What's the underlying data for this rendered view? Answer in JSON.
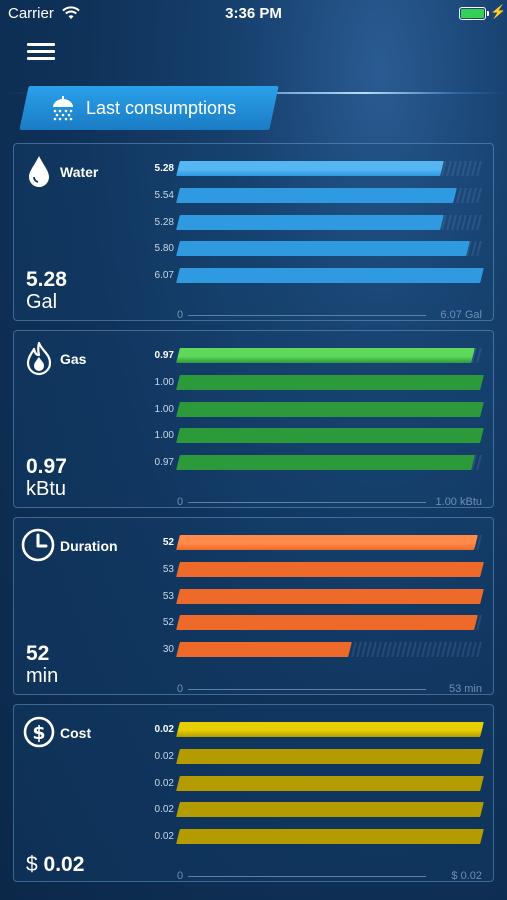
{
  "status_bar": {
    "carrier": "Carrier",
    "time": "3:36 PM",
    "battery_level": 1.0
  },
  "header": {
    "menu_icon": "hamburger-icon",
    "section_label": "Last consumptions",
    "section_icon": "shower-icon"
  },
  "colors": {
    "water": "#2f9ae0",
    "water_top": "#56b6f4",
    "gas": "#2c9a3a",
    "gas_top": "#5fd95c",
    "duration": "#ee6a2a",
    "duration_top": "#ff8a4a",
    "cost": "#b39b00",
    "cost_top": "#e6d000"
  },
  "cards": [
    {
      "id": "water",
      "icon": "water-drop-icon",
      "title": "Water",
      "value": "5.28",
      "unit": "Gal",
      "axis_min": "0",
      "axis_max": "6.07 Gal",
      "chart_data": {
        "type": "bar",
        "orientation": "horizontal",
        "values": [
          5.28,
          5.54,
          5.28,
          5.8,
          6.07
        ],
        "labels": [
          "5.28",
          "5.54",
          "5.28",
          "5.80",
          "6.07"
        ],
        "xlim": [
          0,
          6.07
        ],
        "highlight_index": 0
      }
    },
    {
      "id": "gas",
      "icon": "flame-icon",
      "title": "Gas",
      "value": "0.97",
      "unit": "kBtu",
      "axis_min": "0",
      "axis_max": "1.00 kBtu",
      "chart_data": {
        "type": "bar",
        "orientation": "horizontal",
        "values": [
          0.97,
          1.0,
          1.0,
          1.0,
          0.97
        ],
        "labels": [
          "0.97",
          "1.00",
          "1.00",
          "1.00",
          "0.97"
        ],
        "xlim": [
          0,
          1.0
        ],
        "highlight_index": 0
      }
    },
    {
      "id": "duration",
      "icon": "clock-icon",
      "title": "Duration",
      "value": "52",
      "unit": "min",
      "axis_min": "0",
      "axis_max": "53 min",
      "chart_data": {
        "type": "bar",
        "orientation": "horizontal",
        "values": [
          52,
          53,
          53,
          52,
          30
        ],
        "labels": [
          "52",
          "53",
          "53",
          "52",
          "30"
        ],
        "xlim": [
          0,
          53
        ],
        "highlight_index": 0
      }
    },
    {
      "id": "cost",
      "icon": "dollar-icon",
      "title": "Cost",
      "value_prefix": "$",
      "value": "0.02",
      "unit": "",
      "axis_min": "0",
      "axis_max": "$ 0.02",
      "chart_data": {
        "type": "bar",
        "orientation": "horizontal",
        "values": [
          0.02,
          0.02,
          0.02,
          0.02,
          0.02
        ],
        "labels": [
          "0.02",
          "0.02",
          "0.02",
          "0.02",
          "0.02"
        ],
        "xlim": [
          0,
          0.02
        ],
        "highlight_index": 0
      }
    }
  ]
}
